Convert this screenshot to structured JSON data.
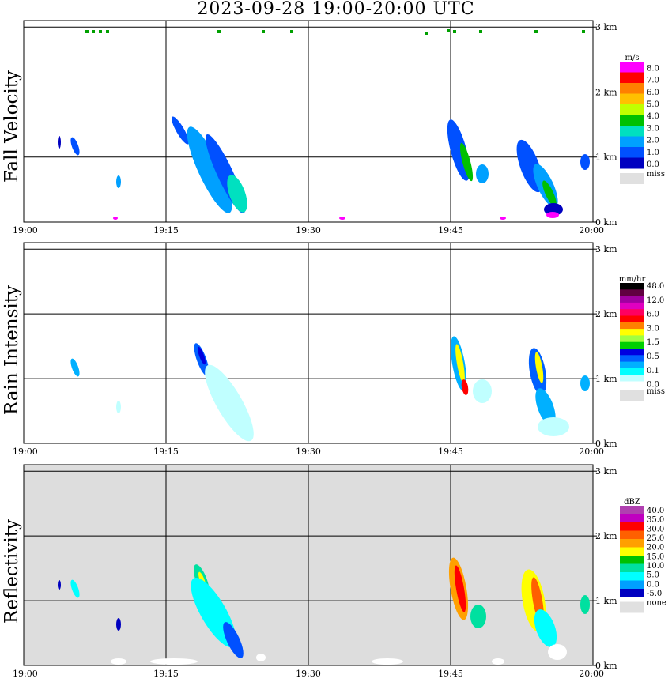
{
  "title": "2023-09-28   19:00-20:00 UTC",
  "chart_data": [
    {
      "type": "heatmap",
      "title": "Fall Velocity",
      "x_ticks": [
        "19:00",
        "19:15",
        "19:30",
        "19:45",
        "20:00"
      ],
      "y_ticks": [
        "0 km",
        "1 km",
        "2 km",
        "3 km"
      ],
      "xlim": [
        "19:00",
        "20:00"
      ],
      "ylim_km": [
        0,
        3.1
      ],
      "grid": true,
      "background": "#ffffff",
      "colorbar": {
        "unit": "m/s",
        "labels": [
          "8.0",
          "7.0",
          "6.0",
          "5.0",
          "4.0",
          "3.0",
          "2.0",
          "1.0",
          "0.0"
        ],
        "missing_label": "miss",
        "colors": [
          "#ff00ff",
          "#ff0000",
          "#ff8000",
          "#ffc000",
          "#c0ff00",
          "#00c000",
          "#00e0c0",
          "#00a0ff",
          "#0050ff",
          "#0000c0",
          "#e0e0e0"
        ]
      }
    },
    {
      "type": "heatmap",
      "title": "Rain Intensity",
      "x_ticks": [
        "19:00",
        "19:15",
        "19:30",
        "19:45",
        "20:00"
      ],
      "y_ticks": [
        "0 km",
        "1 km",
        "2 km",
        "3 km"
      ],
      "xlim": [
        "19:00",
        "20:00"
      ],
      "ylim_km": [
        0,
        3.1
      ],
      "grid": true,
      "background": "#ffffff",
      "colorbar": {
        "unit": "mm/hr",
        "labels": [
          "48.0",
          "12.0",
          "6.0",
          "3.0",
          "1.5",
          "0.5",
          "0.1",
          "0.0"
        ],
        "missing_label": "miss",
        "colors": [
          "#000000",
          "#600040",
          "#a000a0",
          "#e000c0",
          "#ff0060",
          "#ff0000",
          "#ff8000",
          "#ffff00",
          "#a0ff40",
          "#00d000",
          "#0000e0",
          "#0060ff",
          "#00b0ff",
          "#00ffff",
          "#c0ffff",
          "#ffffff",
          "#e0e0e0"
        ]
      }
    },
    {
      "type": "heatmap",
      "title": "Reflectivity",
      "x_ticks": [
        "19:00",
        "19:15",
        "19:30",
        "19:45",
        "20:00"
      ],
      "y_ticks": [
        "0 km",
        "1 km",
        "2 km",
        "3 km"
      ],
      "xlim": [
        "19:00",
        "20:00"
      ],
      "ylim_km": [
        0,
        3.1
      ],
      "grid": true,
      "background": "#dddddd",
      "colorbar": {
        "unit": "dBZ",
        "labels": [
          "40.0",
          "35.0",
          "30.0",
          "25.0",
          "20.0",
          "15.0",
          "10.0",
          "5.0",
          "0.0",
          "-5.0"
        ],
        "missing_label": "none",
        "colors": [
          "#b040b0",
          "#c000c0",
          "#ff0000",
          "#ff6000",
          "#ffa000",
          "#ffff00",
          "#00c000",
          "#00e0a0",
          "#00ffff",
          "#00a0ff",
          "#0000c0",
          "#e0e0e0"
        ]
      }
    }
  ]
}
